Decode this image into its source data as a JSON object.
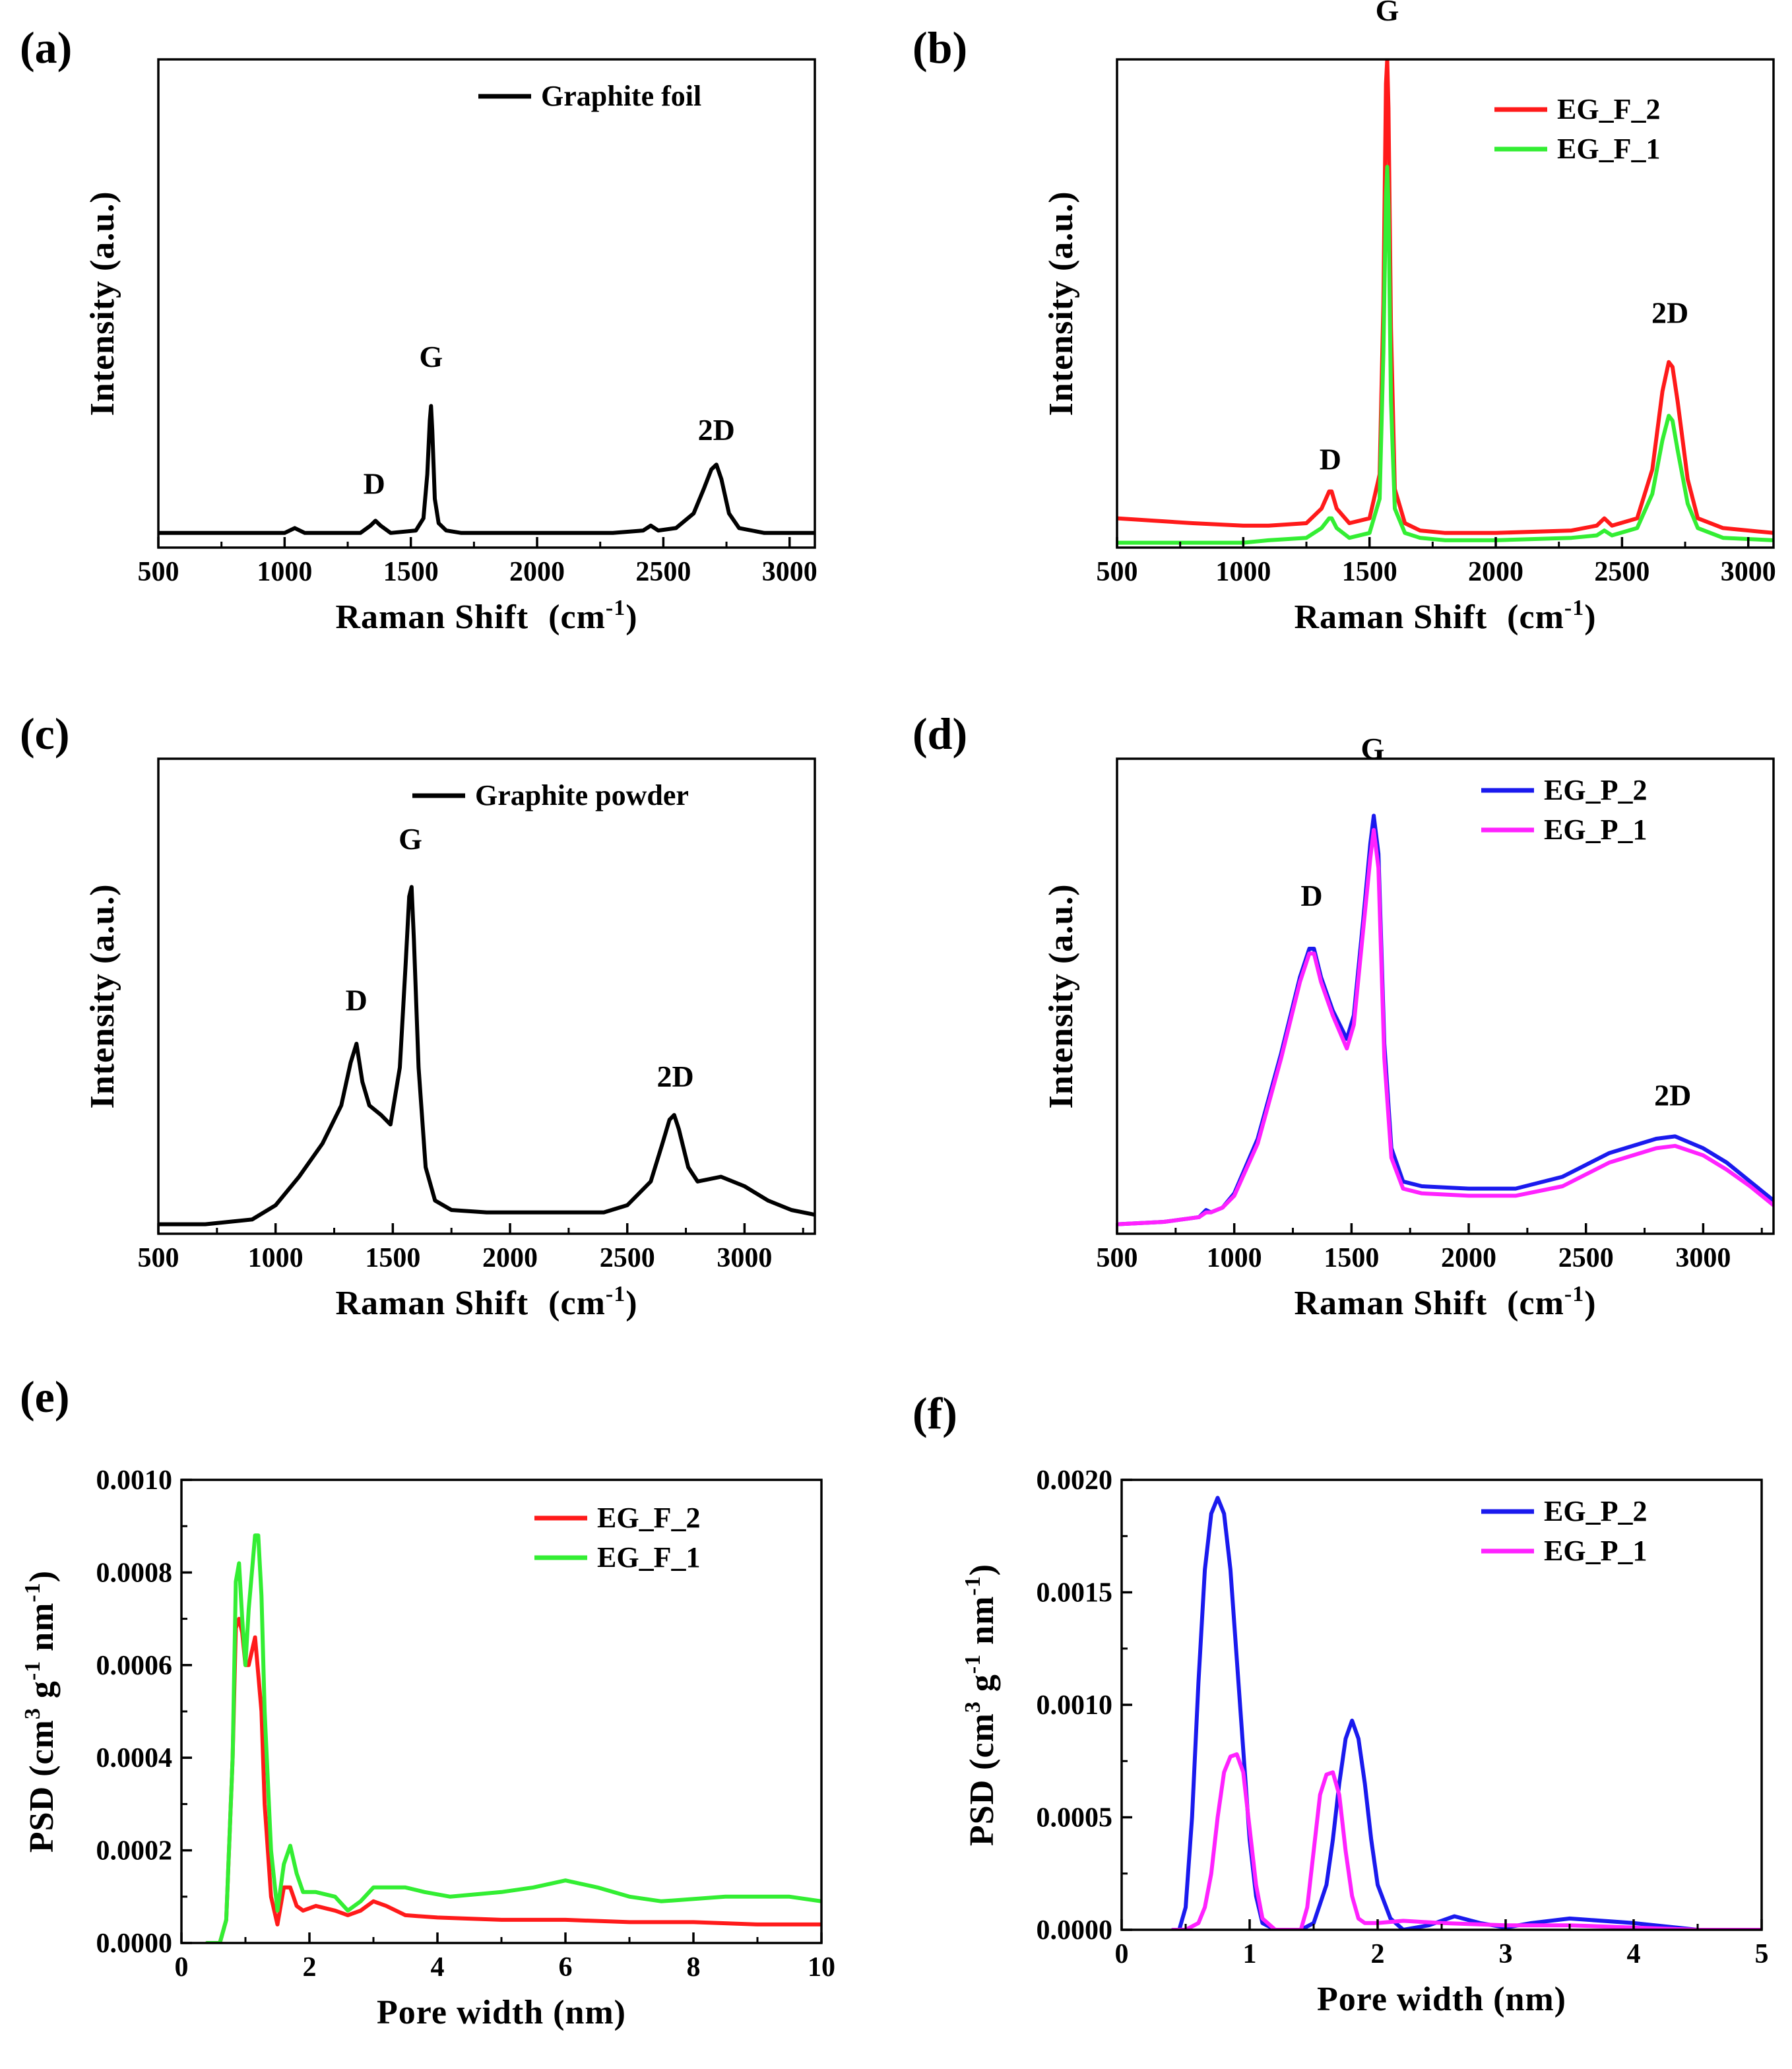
{
  "chart_data": [
    {
      "panel": "(a)",
      "type": "line",
      "xlabel": "Raman Shift",
      "xunit": "(cm",
      "xunit_exp": "-1",
      "xunit_close": ")",
      "ylabel": "Intensity (a.u.)",
      "xlim": [
        500,
        3100
      ],
      "ylim": [
        0,
        100
      ],
      "xticks": [
        500,
        1000,
        1500,
        2000,
        2500,
        3000
      ],
      "yticks": [],
      "legend_position": "top-right",
      "series": [
        {
          "name": "Graphite foil",
          "color": "#000000",
          "x": [
            500,
            1000,
            1040,
            1080,
            1300,
            1340,
            1360,
            1380,
            1420,
            1520,
            1550,
            1565,
            1575,
            1580,
            1585,
            1595,
            1610,
            1640,
            1700,
            2000,
            2300,
            2420,
            2450,
            2480,
            2550,
            2620,
            2660,
            2690,
            2710,
            2730,
            2760,
            2800,
            2900,
            3100
          ],
          "values": [
            3,
            3,
            4,
            3,
            3,
            4.5,
            5.5,
            4.5,
            3,
            3.5,
            6,
            15,
            26,
            29,
            24,
            10,
            5,
            3.5,
            3,
            3,
            3,
            3.5,
            4.5,
            3.5,
            4,
            7,
            12,
            16,
            17,
            14,
            7,
            4,
            3,
            3
          ]
        }
      ],
      "annotations": [
        {
          "text": "D",
          "x": 1355,
          "y": 11
        },
        {
          "text": "G",
          "x": 1580,
          "y": 37
        },
        {
          "text": "2D",
          "x": 2710,
          "y": 22
        }
      ]
    },
    {
      "panel": "(b)",
      "type": "line",
      "xlabel": "Raman Shift",
      "xunit": "(cm",
      "xunit_exp": "-1",
      "xunit_close": ")",
      "ylabel": "Intensity (a.u.)",
      "xlim": [
        500,
        3100
      ],
      "ylim": [
        0,
        100
      ],
      "xticks": [
        500,
        1000,
        1500,
        2000,
        2500,
        3000
      ],
      "yticks": [],
      "legend_position": "top-right",
      "series": [
        {
          "name": "EG_F_2",
          "color": "#ff1a1a",
          "x": [
            500,
            800,
            1000,
            1100,
            1250,
            1310,
            1340,
            1350,
            1370,
            1420,
            1500,
            1540,
            1555,
            1565,
            1570,
            1575,
            1585,
            1600,
            1640,
            1700,
            1800,
            2000,
            2300,
            2400,
            2430,
            2460,
            2560,
            2620,
            2660,
            2685,
            2700,
            2720,
            2760,
            2800,
            2900,
            3100
          ],
          "values": [
            6,
            5,
            4.5,
            4.5,
            5,
            8,
            11.5,
            11.5,
            8,
            5,
            6,
            15,
            50,
            95,
            100,
            90,
            45,
            12,
            5,
            3.5,
            3,
            3,
            3.5,
            4.5,
            6,
            4.5,
            6,
            16,
            32,
            38,
            37,
            30,
            14,
            6,
            4,
            3
          ]
        },
        {
          "name": "EG_F_1",
          "color": "#33ee33",
          "x": [
            500,
            800,
            1000,
            1100,
            1250,
            1310,
            1340,
            1350,
            1370,
            1420,
            1500,
            1540,
            1555,
            1565,
            1570,
            1575,
            1585,
            1600,
            1640,
            1700,
            1800,
            2000,
            2300,
            2400,
            2430,
            2460,
            2560,
            2620,
            2660,
            2685,
            2700,
            2720,
            2760,
            2800,
            2900,
            3100
          ],
          "values": [
            1,
            1,
            1,
            1.5,
            2,
            4,
            6,
            6,
            4,
            2,
            3,
            10,
            40,
            72,
            78,
            70,
            30,
            8,
            3,
            2,
            1.5,
            1.5,
            2,
            2.5,
            3.5,
            2.5,
            4,
            11,
            22,
            27,
            26,
            20,
            9,
            4,
            2,
            1.5
          ]
        }
      ],
      "annotations": [
        {
          "text": "D",
          "x": 1345,
          "y": 16
        },
        {
          "text": "G",
          "x": 1570,
          "y": 108
        },
        {
          "text": "2D",
          "x": 2690,
          "y": 46
        }
      ]
    },
    {
      "panel": "(c)",
      "type": "line",
      "xlabel": "Raman Shift",
      "xunit": "(cm",
      "xunit_exp": "-1",
      "xunit_close": ")",
      "ylabel": "Intensity (a.u.)",
      "xlim": [
        500,
        3300
      ],
      "ylim": [
        0,
        100
      ],
      "xticks": [
        500,
        1000,
        1500,
        2000,
        2500,
        3000
      ],
      "yticks": [],
      "legend_position": "top-right",
      "series": [
        {
          "name": "Graphite powder",
          "color": "#000000",
          "x": [
            500,
            700,
            800,
            900,
            1000,
            1100,
            1200,
            1280,
            1320,
            1345,
            1370,
            1400,
            1450,
            1490,
            1530,
            1555,
            1570,
            1580,
            1590,
            1610,
            1640,
            1680,
            1750,
            1900,
            2200,
            2400,
            2500,
            2600,
            2650,
            2680,
            2700,
            2720,
            2760,
            2800,
            2900,
            3000,
            3100,
            3200,
            3300
          ],
          "values": [
            2,
            2,
            2.5,
            3,
            6,
            12,
            19,
            27,
            36,
            40,
            32,
            27,
            25,
            23,
            35,
            57,
            71,
            73,
            62,
            35,
            14,
            7,
            5,
            4.5,
            4.5,
            4.5,
            6,
            11,
            19,
            24,
            25,
            22,
            14,
            11,
            12,
            10,
            7,
            5,
            4
          ]
        }
      ],
      "annotations": [
        {
          "text": "D",
          "x": 1345,
          "y": 47
        },
        {
          "text": "G",
          "x": 1575,
          "y": 81
        },
        {
          "text": "2D",
          "x": 2705,
          "y": 31
        }
      ]
    },
    {
      "panel": "(d)",
      "type": "line",
      "xlabel": "Raman Shift",
      "xunit": "(cm",
      "xunit_exp": "-1",
      "xunit_close": ")",
      "ylabel": "Intensity (a.u.)",
      "xlim": [
        500,
        3300
      ],
      "ylim": [
        0,
        100
      ],
      "xticks": [
        500,
        1000,
        1500,
        2000,
        2500,
        3000
      ],
      "yticks": [],
      "legend_position": "top-right",
      "series": [
        {
          "name": "EG_P_2",
          "color": "#1a1aee",
          "x": [
            500,
            700,
            850,
            880,
            900,
            950,
            1000,
            1100,
            1200,
            1280,
            1320,
            1340,
            1370,
            1420,
            1480,
            1510,
            1550,
            1580,
            1595,
            1615,
            1640,
            1670,
            1720,
            1800,
            2000,
            2200,
            2400,
            2600,
            2800,
            2880,
            3000,
            3100,
            3200,
            3300
          ],
          "values": [
            2,
            2.5,
            3.5,
            5,
            4.5,
            5.5,
            8.5,
            20,
            38,
            54,
            60,
            60,
            54,
            47,
            41,
            46,
            66,
            82,
            88,
            80,
            40,
            18,
            11,
            10,
            9.5,
            9.5,
            12,
            17,
            20,
            20.5,
            18,
            15,
            11,
            7
          ]
        },
        {
          "name": "EG_P_1",
          "color": "#ff22ff",
          "x": [
            500,
            700,
            850,
            880,
            900,
            950,
            1000,
            1100,
            1200,
            1280,
            1320,
            1340,
            1370,
            1420,
            1480,
            1510,
            1550,
            1580,
            1595,
            1615,
            1640,
            1670,
            1720,
            1800,
            2000,
            2200,
            2400,
            2600,
            2800,
            2880,
            3000,
            3100,
            3200,
            3300
          ],
          "values": [
            2,
            2.5,
            3.5,
            4.5,
            4.5,
            5.5,
            8,
            19,
            37,
            53,
            59,
            59,
            53,
            46,
            39,
            44,
            64,
            79,
            85,
            77,
            37,
            16,
            9.5,
            8.5,
            8,
            8,
            10,
            15,
            18,
            18.5,
            16.5,
            13.5,
            10,
            6
          ]
        }
      ],
      "annotations": [
        {
          "text": "D",
          "x": 1330,
          "y": 69
        },
        {
          "text": "G",
          "x": 1590,
          "y": 100
        },
        {
          "text": "2D",
          "x": 2870,
          "y": 27
        }
      ]
    },
    {
      "panel": "(e)",
      "type": "line",
      "xlabel": "Pore width (nm)",
      "ylabel": "PSD (cm",
      "ylabel_exp1": "3",
      "ylabel_mid": " g",
      "ylabel_exp2": "-1",
      "ylabel_end": " nm",
      "ylabel_exp3": "-1",
      "ylabel_close": ")",
      "xlim": [
        0,
        10
      ],
      "ylim": [
        0,
        0.001
      ],
      "xticks": [
        0,
        2,
        4,
        6,
        8,
        10
      ],
      "ytick_values": [
        0,
        0.0002,
        0.0004,
        0.0006,
        0.0008,
        0.001
      ],
      "ytick_labels": [
        "0.0000",
        "0.0002",
        "0.0004",
        "0.0006",
        "0.0008",
        "0.0010"
      ],
      "legend_position": "top-right",
      "series": [
        {
          "name": "EG_F_2",
          "color": "#ff1a1a",
          "x": [
            0.4,
            0.6,
            0.7,
            0.8,
            0.85,
            0.9,
            0.95,
            1.0,
            1.05,
            1.15,
            1.25,
            1.3,
            1.4,
            1.5,
            1.6,
            1.7,
            1.8,
            1.9,
            2.1,
            2.4,
            2.6,
            2.8,
            3.0,
            3.2,
            3.5,
            4.0,
            5.0,
            6.0,
            7.0,
            8.0,
            9.0,
            10.0
          ],
          "values": [
            0,
            0,
            5e-05,
            0.0004,
            0.00068,
            0.0007,
            0.00067,
            0.0006,
            0.0006,
            0.00066,
            0.0005,
            0.0003,
            0.0001,
            4e-05,
            0.00012,
            0.00012,
            8e-05,
            7e-05,
            8e-05,
            7e-05,
            6e-05,
            7e-05,
            9e-05,
            8e-05,
            6e-05,
            5.5e-05,
            5e-05,
            5e-05,
            4.5e-05,
            4.5e-05,
            4e-05,
            4e-05
          ]
        },
        {
          "name": "EG_F_1",
          "color": "#33ee33",
          "x": [
            0.4,
            0.6,
            0.7,
            0.8,
            0.85,
            0.9,
            0.95,
            1.0,
            1.05,
            1.15,
            1.2,
            1.25,
            1.3,
            1.4,
            1.5,
            1.6,
            1.7,
            1.8,
            1.9,
            2.1,
            2.4,
            2.6,
            2.8,
            3.0,
            3.2,
            3.5,
            3.8,
            4.2,
            5.0,
            5.5,
            6.0,
            6.5,
            7.0,
            7.5,
            8.5,
            9.5,
            10.0
          ],
          "values": [
            0,
            0,
            5e-05,
            0.0004,
            0.00078,
            0.00082,
            0.0007,
            0.0006,
            0.00072,
            0.00088,
            0.00088,
            0.00075,
            0.0005,
            0.0002,
            7e-05,
            0.00017,
            0.00021,
            0.00015,
            0.00011,
            0.00011,
            0.0001,
            7e-05,
            9e-05,
            0.00012,
            0.00012,
            0.00012,
            0.00011,
            0.0001,
            0.00011,
            0.00012,
            0.000135,
            0.00012,
            0.0001,
            9e-05,
            0.0001,
            0.0001,
            9e-05
          ]
        }
      ]
    },
    {
      "panel": "(f)",
      "type": "line",
      "xlabel": "Pore width (nm)",
      "ylabel": "PSD (cm",
      "ylabel_exp1": "3",
      "ylabel_mid": " g",
      "ylabel_exp2": "-1",
      "ylabel_end": " nm",
      "ylabel_exp3": "-1",
      "ylabel_close": ")",
      "xlim": [
        0,
        5
      ],
      "ylim": [
        0,
        0.002
      ],
      "xticks": [
        0,
        1,
        2,
        3,
        4,
        5
      ],
      "ytick_values": [
        0,
        0.0005,
        0.001,
        0.0015,
        0.002
      ],
      "ytick_labels": [
        "0.0000",
        "0.0005",
        "0.0010",
        "0.0015",
        "0.0020"
      ],
      "legend_position": "top-right",
      "series": [
        {
          "name": "EG_P_2",
          "color": "#1a1aee",
          "x": [
            0.4,
            0.45,
            0.5,
            0.55,
            0.6,
            0.65,
            0.7,
            0.75,
            0.8,
            0.85,
            0.9,
            0.95,
            1.0,
            1.05,
            1.1,
            1.2,
            1.4,
            1.5,
            1.6,
            1.65,
            1.7,
            1.75,
            1.8,
            1.85,
            1.9,
            1.95,
            2.0,
            2.1,
            2.2,
            2.4,
            2.6,
            2.8,
            3.0,
            3.2,
            3.5,
            4.0,
            4.5,
            5.0
          ],
          "values": [
            0,
            0,
            0.0001,
            0.0005,
            0.0011,
            0.0016,
            0.00185,
            0.00192,
            0.00185,
            0.0016,
            0.0012,
            0.0008,
            0.0004,
            0.00015,
            3e-05,
            0,
            0,
            3e-05,
            0.0002,
            0.0004,
            0.00065,
            0.00085,
            0.00093,
            0.00085,
            0.00065,
            0.0004,
            0.0002,
            5e-05,
            0,
            2e-05,
            6e-05,
            3e-05,
            1e-05,
            3e-05,
            5e-05,
            3e-05,
            0,
            0
          ]
        },
        {
          "name": "EG_P_1",
          "color": "#ff22ff",
          "x": [
            0.4,
            0.5,
            0.6,
            0.65,
            0.7,
            0.75,
            0.8,
            0.85,
            0.9,
            0.95,
            1.0,
            1.05,
            1.1,
            1.2,
            1.3,
            1.4,
            1.45,
            1.5,
            1.55,
            1.6,
            1.65,
            1.7,
            1.75,
            1.8,
            1.85,
            1.9,
            2.0,
            2.2,
            2.5,
            3.0,
            3.5,
            4.0,
            4.5,
            5.0
          ],
          "values": [
            0,
            0,
            3e-05,
            0.0001,
            0.00025,
            0.0005,
            0.0007,
            0.00077,
            0.00078,
            0.0007,
            0.00045,
            0.0002,
            5e-05,
            0,
            0,
            0,
            0.0001,
            0.00035,
            0.0006,
            0.00069,
            0.0007,
            0.0006,
            0.00035,
            0.00015,
            5e-05,
            3e-05,
            3e-05,
            4e-05,
            3e-05,
            2e-05,
            2e-05,
            1e-05,
            0,
            0
          ]
        }
      ]
    }
  ]
}
